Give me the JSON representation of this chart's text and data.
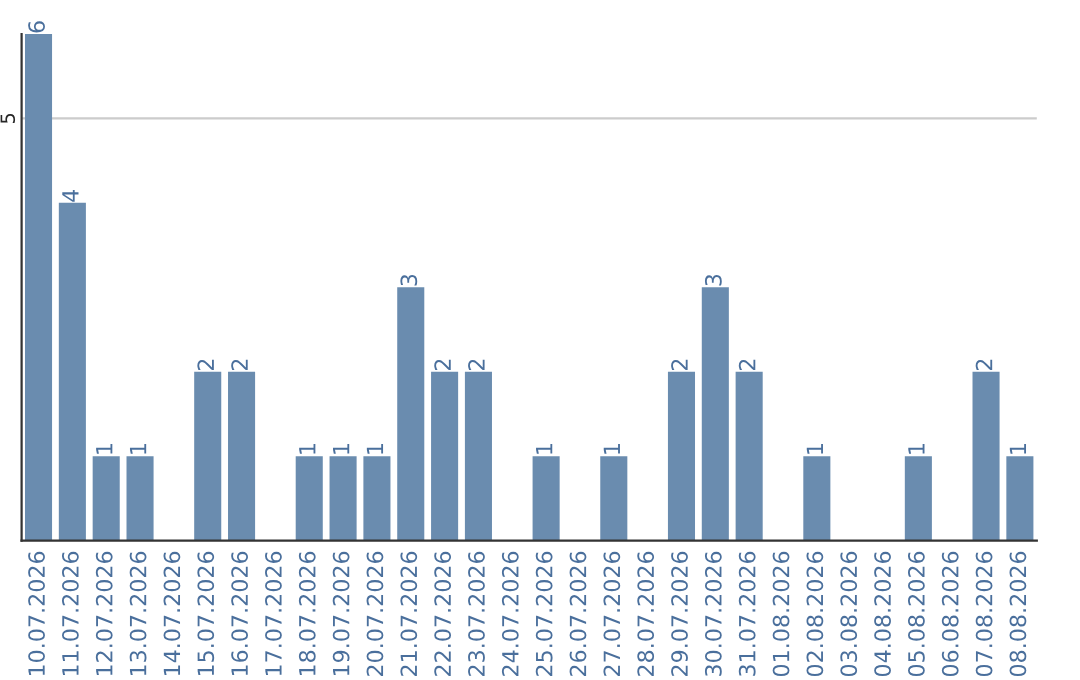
{
  "chart_data": {
    "type": "bar",
    "categories": [
      "10.07.2026",
      "11.07.2026",
      "12.07.2026",
      "13.07.2026",
      "14.07.2026",
      "15.07.2026",
      "16.07.2026",
      "17.07.2026",
      "18.07.2026",
      "19.07.2026",
      "20.07.2026",
      "21.07.2026",
      "22.07.2026",
      "23.07.2026",
      "24.07.2026",
      "25.07.2026",
      "26.07.2026",
      "27.07.2026",
      "28.07.2026",
      "29.07.2026",
      "30.07.2026",
      "31.07.2026",
      "01.08.2026",
      "02.08.2026",
      "03.08.2026",
      "04.08.2026",
      "05.08.2026",
      "06.08.2026",
      "07.08.2026",
      "08.08.2026"
    ],
    "values": [
      6,
      4,
      1,
      1,
      null,
      2,
      2,
      null,
      1,
      1,
      1,
      3,
      2,
      2,
      null,
      1,
      null,
      1,
      null,
      2,
      3,
      2,
      null,
      1,
      null,
      null,
      1,
      null,
      2,
      1
    ],
    "value_labels": [
      "6",
      "4",
      "1",
      "1",
      null,
      "2",
      "2",
      null,
      "1",
      "1",
      "1",
      "3",
      "2",
      "2",
      null,
      "1",
      null,
      "1",
      null,
      "2",
      "3",
      "2",
      null,
      "1",
      null,
      null,
      "1",
      null,
      "2",
      "1"
    ],
    "color": "#6a8caf",
    "ylim": [
      0,
      6
    ],
    "yticks": [
      5
    ],
    "grid": "y"
  }
}
